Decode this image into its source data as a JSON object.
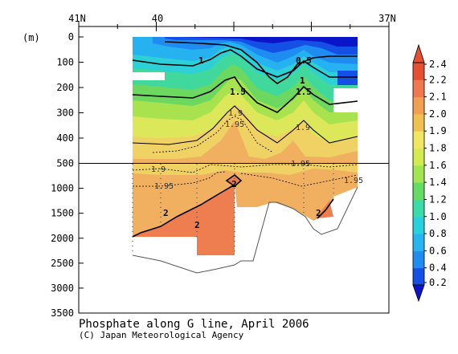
{
  "chart_data": {
    "type": "heatmap",
    "title": "Phosphate along G line, April 2006",
    "credit": "(C) Japan Meteorological Agency",
    "ylabel": "(m)",
    "top_axis": [
      {
        "label": "41N",
        "lat": 41
      },
      {
        "label": "40",
        "lat": 40
      },
      {
        "label": "37N",
        "lat": 37
      }
    ],
    "y_ticks_upper": [
      0,
      100,
      200,
      300,
      400,
      500
    ],
    "y_ticks_lower": [
      1000,
      1500,
      2000,
      2500,
      3000,
      3500
    ],
    "colorbar": {
      "levels": [
        "0.2",
        "0.4",
        "0.6",
        "0.8",
        "1.0",
        "1.2",
        "1.4",
        "1.6",
        "1.8",
        "1.9",
        "2.0",
        "2.1",
        "2.2",
        "2.4"
      ],
      "colors": [
        "#0a14c8",
        "#1450e6",
        "#1e8cf0",
        "#28b4f0",
        "#28d2dc",
        "#3cdcaa",
        "#64dc64",
        "#a0e650",
        "#d2ec50",
        "#f0e660",
        "#f0c050",
        "#f0a050",
        "#f07850",
        "#e65032"
      ]
    },
    "contour_labels_upper": [
      "1",
      "0.5",
      "1",
      "1.5",
      "1.5",
      "1.9",
      "1.95",
      "1.9"
    ],
    "contour_labels_lower": [
      "1.9",
      "1.95",
      "1.95",
      "1.95",
      "2",
      "2",
      "2",
      "2"
    ]
  }
}
